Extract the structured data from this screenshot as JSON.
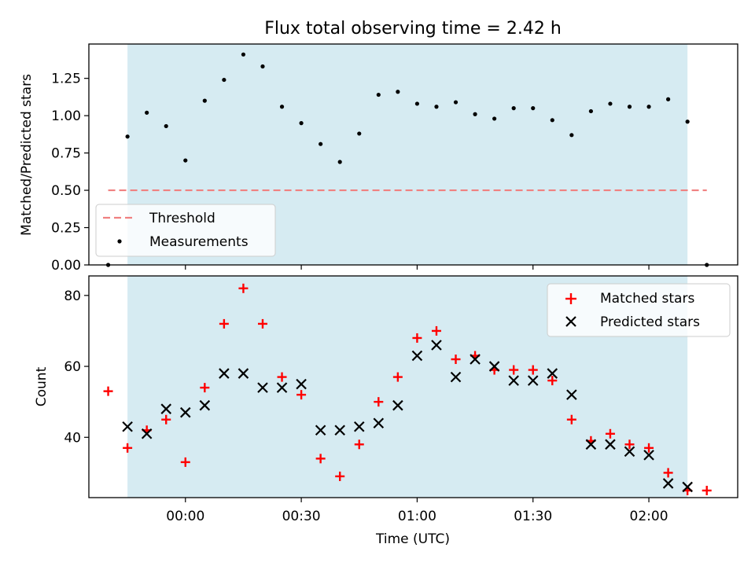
{
  "figure": {
    "title": "Flux total observing time = 2.42 h",
    "shading_color": "#add8e6"
  },
  "chart_data": [
    {
      "type": "scatter",
      "panel": "top",
      "ylabel": "Matched/Predicted stars",
      "ylim": [
        0,
        1.48
      ],
      "yticks": [
        0.0,
        0.25,
        0.5,
        0.75,
        1.0,
        1.25
      ],
      "ytick_labels": [
        "0.00",
        "0.25",
        "0.50",
        "0.75",
        "1.00",
        "1.25"
      ],
      "xlim": [
        -25,
        143
      ],
      "shaded_range": [
        -15,
        130
      ],
      "threshold": {
        "label": "Threshold",
        "value": 0.5,
        "x_range": [
          -20,
          135
        ],
        "color": "#f08080"
      },
      "series": [
        {
          "name": "Measurements",
          "color": "#000000",
          "x": [
            -20,
            -15,
            -10,
            -5,
            0,
            5,
            10,
            15,
            20,
            25,
            30,
            35,
            40,
            45,
            50,
            55,
            60,
            65,
            70,
            75,
            80,
            85,
            90,
            95,
            100,
            105,
            110,
            115,
            120,
            125,
            130,
            135
          ],
          "values": [
            0.0,
            0.86,
            1.02,
            0.93,
            0.7,
            1.1,
            1.24,
            1.41,
            1.33,
            1.06,
            0.95,
            0.81,
            0.69,
            0.88,
            1.14,
            1.16,
            1.08,
            1.06,
            1.09,
            1.01,
            0.98,
            1.05,
            1.05,
            0.97,
            0.87,
            1.03,
            1.08,
            1.06,
            1.06,
            1.11,
            0.96,
            0.0
          ]
        }
      ],
      "legend": {
        "placement": "lower-left",
        "entries": [
          "Threshold",
          "Measurements"
        ]
      }
    },
    {
      "type": "scatter",
      "panel": "bottom",
      "xlabel": "Time (UTC)",
      "ylabel": "Count",
      "ylim": [
        23,
        85.5
      ],
      "yticks": [
        40,
        60,
        80
      ],
      "ytick_labels": [
        "40",
        "60",
        "80"
      ],
      "xlim": [
        -25,
        143
      ],
      "xticks": [
        0,
        30,
        60,
        90,
        120
      ],
      "xtick_labels": [
        "00:00",
        "00:30",
        "01:00",
        "01:30",
        "02:00"
      ],
      "shaded_range": [
        -15,
        130
      ],
      "series": [
        {
          "name": "Matched stars",
          "marker": "plus",
          "color": "#ff0000",
          "x": [
            -20,
            -15,
            -10,
            -5,
            0,
            5,
            10,
            15,
            20,
            25,
            30,
            35,
            40,
            45,
            50,
            55,
            60,
            65,
            70,
            75,
            80,
            85,
            90,
            95,
            100,
            105,
            110,
            115,
            120,
            125,
            130,
            135
          ],
          "values": [
            53,
            37,
            42,
            45,
            33,
            54,
            72,
            82,
            72,
            57,
            52,
            34,
            29,
            38,
            50,
            57,
            68,
            70,
            62,
            63,
            59,
            59,
            59,
            56,
            45,
            39,
            41,
            38,
            37,
            30,
            25,
            25
          ]
        },
        {
          "name": "Predicted stars",
          "marker": "x",
          "color": "#000000",
          "x": [
            -15,
            -10,
            -5,
            0,
            5,
            10,
            15,
            20,
            25,
            30,
            35,
            40,
            45,
            50,
            55,
            60,
            65,
            70,
            75,
            80,
            85,
            90,
            95,
            100,
            105,
            110,
            115,
            120,
            125,
            130
          ],
          "values": [
            43,
            41,
            48,
            47,
            49,
            58,
            58,
            54,
            54,
            55,
            42,
            42,
            43,
            44,
            49,
            63,
            66,
            57,
            62,
            60,
            56,
            56,
            58,
            52,
            38,
            38,
            36,
            35,
            27,
            26
          ]
        }
      ],
      "legend": {
        "placement": "upper-right",
        "entries": [
          "Matched stars",
          "Predicted stars"
        ]
      }
    }
  ]
}
